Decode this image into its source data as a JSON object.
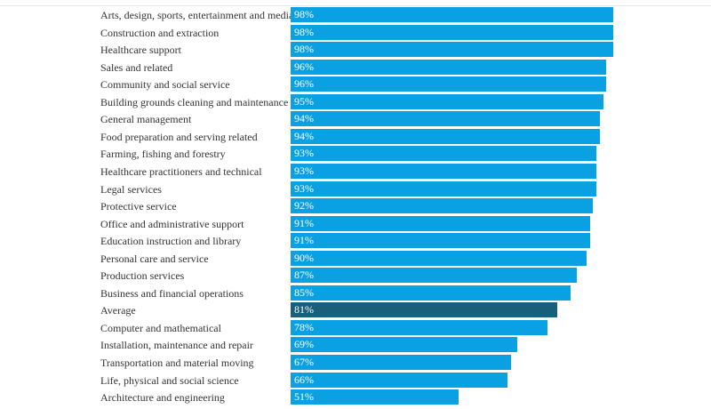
{
  "chart_data": {
    "type": "bar",
    "orientation": "horizontal",
    "value_format": "percent",
    "xlim": [
      0,
      100
    ],
    "grid": false,
    "legend": "none",
    "colors": {
      "bar": "#0aa1e2",
      "highlight": "#175f7a"
    },
    "highlight_category": "Average",
    "categories": [
      "Arts, design, sports, entertainment and media",
      "Construction and extraction",
      "Healthcare support",
      "Sales and related",
      "Community and social service",
      "Building grounds cleaning and maintenance",
      "General management",
      "Food preparation and serving related",
      "Farming, fishing and forestry",
      "Healthcare practitioners and technical",
      "Legal services",
      "Protective service",
      "Office and administrative support",
      "Education instruction and library",
      "Personal care and service",
      "Production services",
      "Business and financial operations",
      "Average",
      "Computer and mathematical",
      "Installation, maintenance and repair",
      "Transportation and material moving",
      "Life, physical and social science",
      "Architecture and engineering"
    ],
    "values": [
      98,
      98,
      98,
      96,
      96,
      95,
      94,
      94,
      93,
      93,
      93,
      92,
      91,
      91,
      90,
      87,
      85,
      81,
      78,
      69,
      67,
      66,
      51
    ],
    "value_labels": [
      "98%",
      "98%",
      "98%",
      "96%",
      "96%",
      "95%",
      "94%",
      "94%",
      "93%",
      "93%",
      "93%",
      "92%",
      "91%",
      "91%",
      "90%",
      "87%",
      "85%",
      "81%",
      "78%",
      "69%",
      "67%",
      "66%",
      "51%"
    ]
  }
}
